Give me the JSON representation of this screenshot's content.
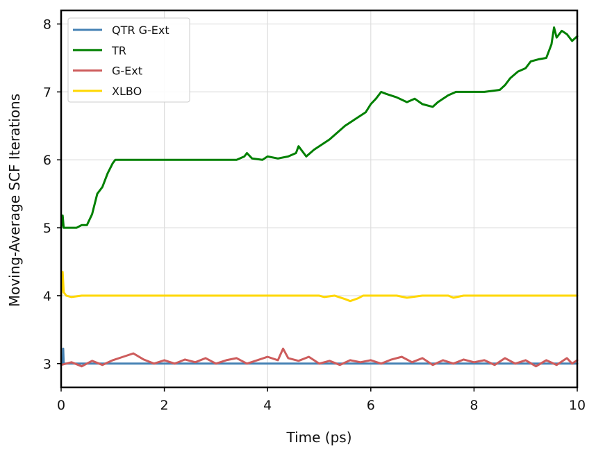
{
  "chart_data": {
    "type": "line",
    "xlabel": "Time (ps)",
    "ylabel": "Moving-Average SCF Iterations",
    "xlim": [
      0,
      10
    ],
    "ylim": [
      2.65,
      8.2
    ],
    "x_ticks": [
      0,
      2,
      4,
      6,
      8,
      10
    ],
    "x_tick_labels": [
      "0",
      "2",
      "4",
      "6",
      "8",
      "10"
    ],
    "y_ticks": [
      3,
      4,
      5,
      6,
      7,
      8
    ],
    "y_tick_labels": [
      "3",
      "4",
      "5",
      "6",
      "7",
      "8"
    ],
    "grid": true,
    "legend_position": "top-left",
    "series": [
      {
        "name": "QTR G-Ext",
        "color": "#4682b4",
        "points": [
          [
            0.0,
            3.0
          ],
          [
            0.03,
            3.0
          ],
          [
            0.04,
            3.22
          ],
          [
            0.05,
            3.0
          ],
          [
            2.0,
            3.0
          ],
          [
            4.0,
            3.0
          ],
          [
            6.0,
            3.0
          ],
          [
            8.0,
            3.0
          ],
          [
            10.0,
            3.0
          ]
        ]
      },
      {
        "name": "TR",
        "color": "#008000",
        "points": [
          [
            0.0,
            5.0
          ],
          [
            0.03,
            5.18
          ],
          [
            0.05,
            5.0
          ],
          [
            0.3,
            5.0
          ],
          [
            0.4,
            5.04
          ],
          [
            0.5,
            5.04
          ],
          [
            0.6,
            5.2
          ],
          [
            0.7,
            5.5
          ],
          [
            0.8,
            5.6
          ],
          [
            0.9,
            5.8
          ],
          [
            1.0,
            5.95
          ],
          [
            1.05,
            6.0
          ],
          [
            2.0,
            6.0
          ],
          [
            3.0,
            6.0
          ],
          [
            3.4,
            6.0
          ],
          [
            3.55,
            6.05
          ],
          [
            3.6,
            6.1
          ],
          [
            3.7,
            6.02
          ],
          [
            3.9,
            6.0
          ],
          [
            4.0,
            6.05
          ],
          [
            4.2,
            6.02
          ],
          [
            4.4,
            6.05
          ],
          [
            4.55,
            6.1
          ],
          [
            4.6,
            6.2
          ],
          [
            4.75,
            6.05
          ],
          [
            4.9,
            6.15
          ],
          [
            5.0,
            6.2
          ],
          [
            5.2,
            6.3
          ],
          [
            5.35,
            6.4
          ],
          [
            5.5,
            6.5
          ],
          [
            5.7,
            6.6
          ],
          [
            5.9,
            6.7
          ],
          [
            6.0,
            6.82
          ],
          [
            6.1,
            6.9
          ],
          [
            6.2,
            7.0
          ],
          [
            6.3,
            6.97
          ],
          [
            6.5,
            6.92
          ],
          [
            6.7,
            6.85
          ],
          [
            6.85,
            6.9
          ],
          [
            7.0,
            6.82
          ],
          [
            7.2,
            6.78
          ],
          [
            7.3,
            6.85
          ],
          [
            7.5,
            6.95
          ],
          [
            7.65,
            7.0
          ],
          [
            8.0,
            7.0
          ],
          [
            8.2,
            7.0
          ],
          [
            8.5,
            7.03
          ],
          [
            8.6,
            7.1
          ],
          [
            8.7,
            7.2
          ],
          [
            8.85,
            7.3
          ],
          [
            9.0,
            7.35
          ],
          [
            9.1,
            7.45
          ],
          [
            9.25,
            7.48
          ],
          [
            9.4,
            7.5
          ],
          [
            9.5,
            7.7
          ],
          [
            9.55,
            7.95
          ],
          [
            9.6,
            7.8
          ],
          [
            9.7,
            7.9
          ],
          [
            9.8,
            7.85
          ],
          [
            9.9,
            7.75
          ],
          [
            10.0,
            7.82
          ]
        ]
      },
      {
        "name": "G-Ext",
        "color": "#cd5c5c",
        "points": [
          [
            0.0,
            2.98
          ],
          [
            0.2,
            3.02
          ],
          [
            0.4,
            2.96
          ],
          [
            0.6,
            3.04
          ],
          [
            0.8,
            2.98
          ],
          [
            1.0,
            3.05
          ],
          [
            1.2,
            3.1
          ],
          [
            1.4,
            3.15
          ],
          [
            1.6,
            3.06
          ],
          [
            1.8,
            3.0
          ],
          [
            2.0,
            3.05
          ],
          [
            2.2,
            3.0
          ],
          [
            2.4,
            3.06
          ],
          [
            2.6,
            3.02
          ],
          [
            2.8,
            3.08
          ],
          [
            3.0,
            3.0
          ],
          [
            3.2,
            3.05
          ],
          [
            3.4,
            3.08
          ],
          [
            3.6,
            3.0
          ],
          [
            3.8,
            3.05
          ],
          [
            4.0,
            3.1
          ],
          [
            4.2,
            3.05
          ],
          [
            4.3,
            3.22
          ],
          [
            4.4,
            3.08
          ],
          [
            4.6,
            3.04
          ],
          [
            4.8,
            3.1
          ],
          [
            5.0,
            3.0
          ],
          [
            5.2,
            3.04
          ],
          [
            5.4,
            2.98
          ],
          [
            5.6,
            3.05
          ],
          [
            5.8,
            3.02
          ],
          [
            6.0,
            3.05
          ],
          [
            6.2,
            3.0
          ],
          [
            6.4,
            3.06
          ],
          [
            6.6,
            3.1
          ],
          [
            6.8,
            3.02
          ],
          [
            7.0,
            3.08
          ],
          [
            7.2,
            2.98
          ],
          [
            7.4,
            3.05
          ],
          [
            7.6,
            3.0
          ],
          [
            7.8,
            3.06
          ],
          [
            8.0,
            3.02
          ],
          [
            8.2,
            3.05
          ],
          [
            8.4,
            2.98
          ],
          [
            8.6,
            3.08
          ],
          [
            8.8,
            3.0
          ],
          [
            9.0,
            3.05
          ],
          [
            9.2,
            2.96
          ],
          [
            9.4,
            3.05
          ],
          [
            9.6,
            2.98
          ],
          [
            9.8,
            3.08
          ],
          [
            9.9,
            3.0
          ],
          [
            10.0,
            3.05
          ]
        ]
      },
      {
        "name": "XLBO",
        "color": "#ffd700",
        "points": [
          [
            0.0,
            4.0
          ],
          [
            0.03,
            4.35
          ],
          [
            0.05,
            4.05
          ],
          [
            0.1,
            4.0
          ],
          [
            0.2,
            3.98
          ],
          [
            0.4,
            4.0
          ],
          [
            1.0,
            4.0
          ],
          [
            2.0,
            4.0
          ],
          [
            3.0,
            4.0
          ],
          [
            4.0,
            4.0
          ],
          [
            4.5,
            4.0
          ],
          [
            5.0,
            4.0
          ],
          [
            5.1,
            3.98
          ],
          [
            5.3,
            4.0
          ],
          [
            5.5,
            3.95
          ],
          [
            5.6,
            3.92
          ],
          [
            5.75,
            3.96
          ],
          [
            5.85,
            4.0
          ],
          [
            6.0,
            4.0
          ],
          [
            6.5,
            4.0
          ],
          [
            6.7,
            3.97
          ],
          [
            7.0,
            4.0
          ],
          [
            7.5,
            4.0
          ],
          [
            7.6,
            3.97
          ],
          [
            7.8,
            4.0
          ],
          [
            8.0,
            4.0
          ],
          [
            9.0,
            4.0
          ],
          [
            10.0,
            4.0
          ]
        ]
      }
    ]
  }
}
